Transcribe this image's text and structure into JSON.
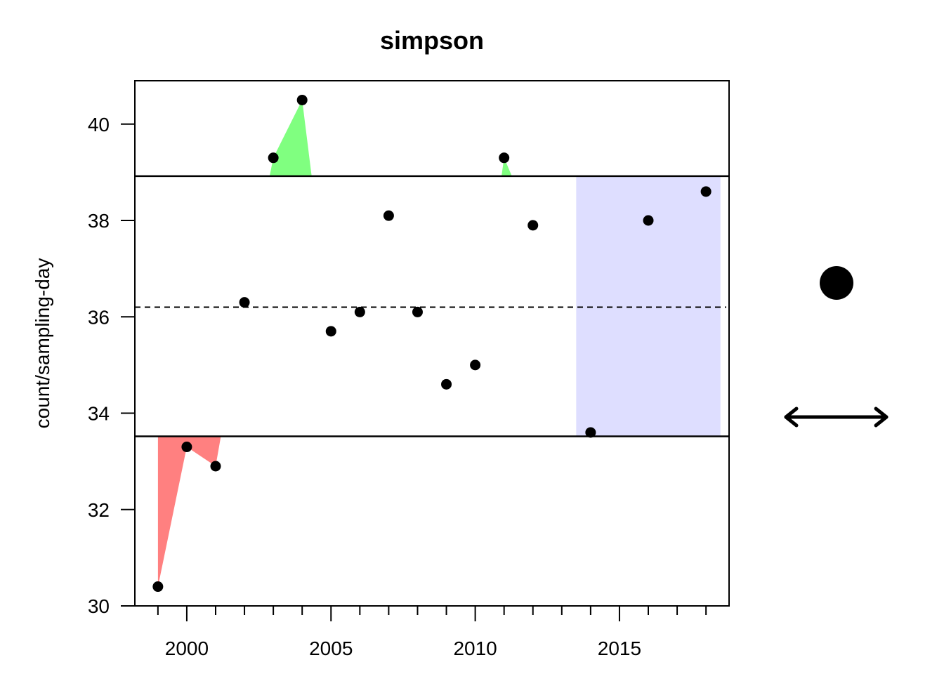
{
  "chart_data": {
    "type": "scatter",
    "title": "simpson",
    "xlabel": "",
    "ylabel": "count/sampling-day",
    "xlim": [
      1998.2,
      2018.8
    ],
    "ylim": [
      30,
      40.9
    ],
    "x_ticks": [
      2000,
      2005,
      2010,
      2015
    ],
    "x_minor_ticks": [
      1999,
      2001,
      2002,
      2003,
      2004,
      2006,
      2007,
      2008,
      2009,
      2011,
      2012,
      2013,
      2014,
      2016,
      2017,
      2018
    ],
    "y_ticks": [
      30,
      32,
      34,
      36,
      38,
      40
    ],
    "grid": false,
    "points": [
      {
        "x": 1999,
        "y": 30.4
      },
      {
        "x": 2000,
        "y": 33.3
      },
      {
        "x": 2001,
        "y": 32.9
      },
      {
        "x": 2002,
        "y": 36.3
      },
      {
        "x": 2003,
        "y": 39.3
      },
      {
        "x": 2004,
        "y": 40.5
      },
      {
        "x": 2005,
        "y": 35.7
      },
      {
        "x": 2006,
        "y": 36.1
      },
      {
        "x": 2007,
        "y": 38.1
      },
      {
        "x": 2008,
        "y": 36.1
      },
      {
        "x": 2009,
        "y": 34.6
      },
      {
        "x": 2010,
        "y": 35.0
      },
      {
        "x": 2011,
        "y": 39.3
      },
      {
        "x": 2012,
        "y": 37.9
      },
      {
        "x": 2014,
        "y": 33.6
      },
      {
        "x": 2016,
        "y": 38.0
      },
      {
        "x": 2018,
        "y": 38.6
      }
    ],
    "mean_line": 36.2,
    "upper_bound": 38.92,
    "lower_bound": 33.52,
    "highlight_x_range": [
      2013.5,
      2018.5
    ],
    "colors": {
      "above_fill": "#80ff80",
      "below_fill": "#ff8080",
      "highlight_fill": "#dedeff",
      "points": "#000000"
    },
    "legend_icons": [
      "filled-circle-icon",
      "double-arrow-icon"
    ]
  }
}
